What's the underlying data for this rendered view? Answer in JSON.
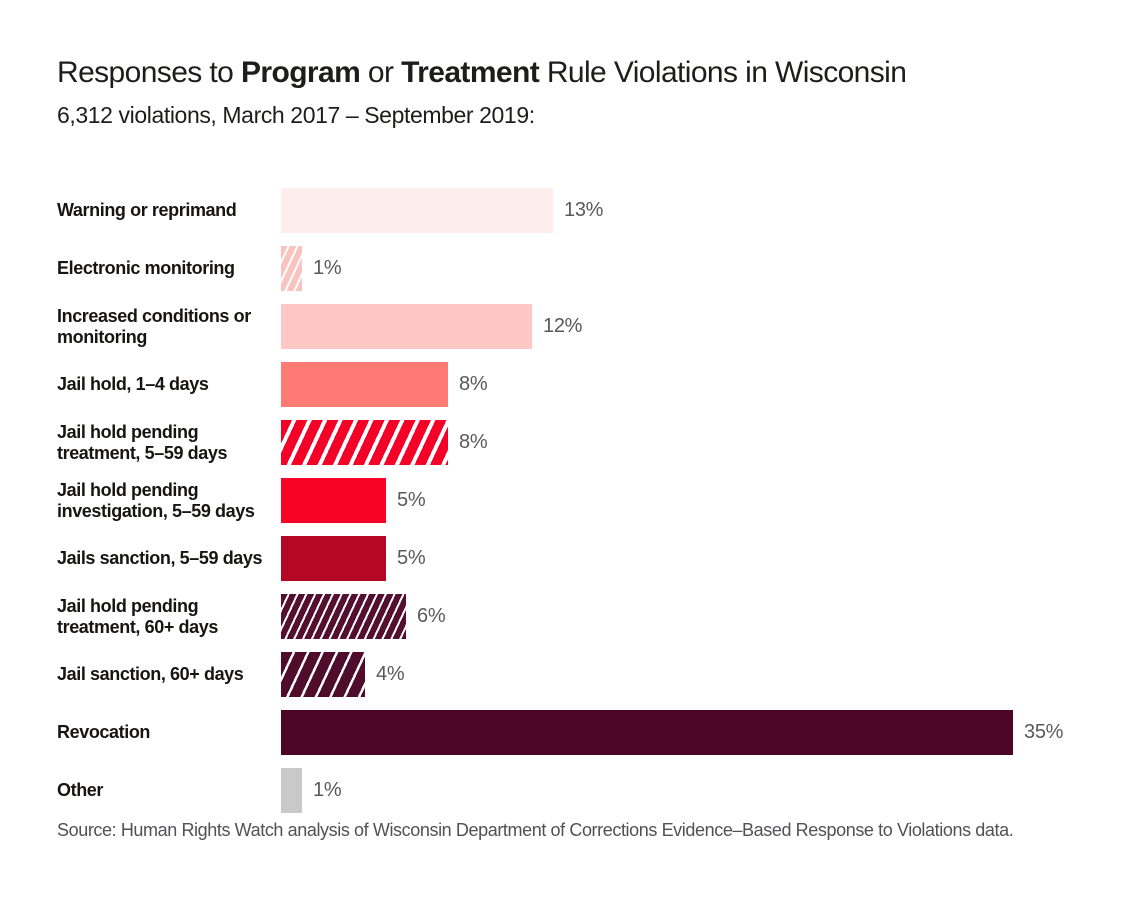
{
  "header": {
    "title_prefix": "Responses to ",
    "title_bold_1": "Program",
    "title_middle": " or ",
    "title_bold_2": "Treatment",
    "title_suffix": " Rule Violations in Wisconsin",
    "subtitle": "6,312 violations, March 2017 – September 2019:"
  },
  "footer": {
    "source": "Source: Human Rights Watch analysis of Wisconsin Department of Corrections Evidence–Based Response to Violations data."
  },
  "style": {
    "text_color": "#1d1d1b",
    "percent_label_color": "#58595b",
    "source_color": "#515156",
    "hatch_stripe_color": "#ffffff"
  },
  "chart_data": {
    "type": "bar",
    "orientation": "horizontal",
    "title": "Responses to Program or Treatment Rule Violations in Wisconsin",
    "subtitle": "6,312 violations, March 2017 – September 2019:",
    "unit": "%",
    "xlim": [
      0,
      36
    ],
    "grid": false,
    "legend": "none",
    "categories": [
      "Warning or reprimand",
      "Electronic monitoring",
      "Increased conditions or monitoring",
      "Jail hold, 1–4 days",
      "Jail hold pending treatment, 5–59 days",
      "Jail hold pending investigation, 5–59 days",
      "Jails sanction, 5–59 days",
      "Jail hold pending treatment, 60+ days",
      "Jail sanction, 60+ days",
      "Revocation",
      "Other"
    ],
    "values": [
      13,
      1,
      12,
      8,
      8,
      5,
      5,
      6,
      4,
      35,
      1
    ],
    "rows": [
      {
        "label": "Warning or reprimand",
        "value": 13,
        "value_label": "13%",
        "color": "#fdeeec",
        "pattern": "solid"
      },
      {
        "label": "Electronic monitoring",
        "value": 1,
        "value_label": "1%",
        "color": "#f9c3bf",
        "pattern": "hatch",
        "hatch_style": "fine",
        "hatch_color": "#ffffff"
      },
      {
        "label": "Increased conditions or monitoring",
        "value": 12,
        "value_label": "12%",
        "color": "#fcc7c4",
        "pattern": "solid"
      },
      {
        "label": "Jail hold, 1–4 days",
        "value": 8,
        "value_label": "8%",
        "color": "#fe7b75",
        "pattern": "solid"
      },
      {
        "label": "Jail hold pending treatment, 5–59 days",
        "value": 8,
        "value_label": "8%",
        "color": "#f30127",
        "pattern": "hatch",
        "hatch_style": "wide",
        "hatch_color": "#ffffff"
      },
      {
        "label": "Jail hold pending investigation, 5–59 days",
        "value": 5,
        "value_label": "5%",
        "color": "#fa0126",
        "pattern": "solid"
      },
      {
        "label": "Jails sanction, 5–59 days",
        "value": 5,
        "value_label": "5%",
        "color": "#b40824",
        "pattern": "solid"
      },
      {
        "label": "Jail hold pending treatment, 60+ days",
        "value": 6,
        "value_label": "6%",
        "color": "#551031",
        "pattern": "hatch",
        "hatch_style": "fine",
        "hatch_color": "#ffffff"
      },
      {
        "label": "Jail sanction, 60+ days",
        "value": 4,
        "value_label": "4%",
        "color": "#500c2d",
        "pattern": "hatch",
        "hatch_style": "medium",
        "hatch_color": "#ffffff"
      },
      {
        "label": "Revocation",
        "value": 35,
        "value_label": "35%",
        "color": "#4c0427",
        "pattern": "solid"
      },
      {
        "label": "Other",
        "value": 1,
        "value_label": "1%",
        "color": "#c9c9c9",
        "pattern": "solid"
      }
    ]
  }
}
